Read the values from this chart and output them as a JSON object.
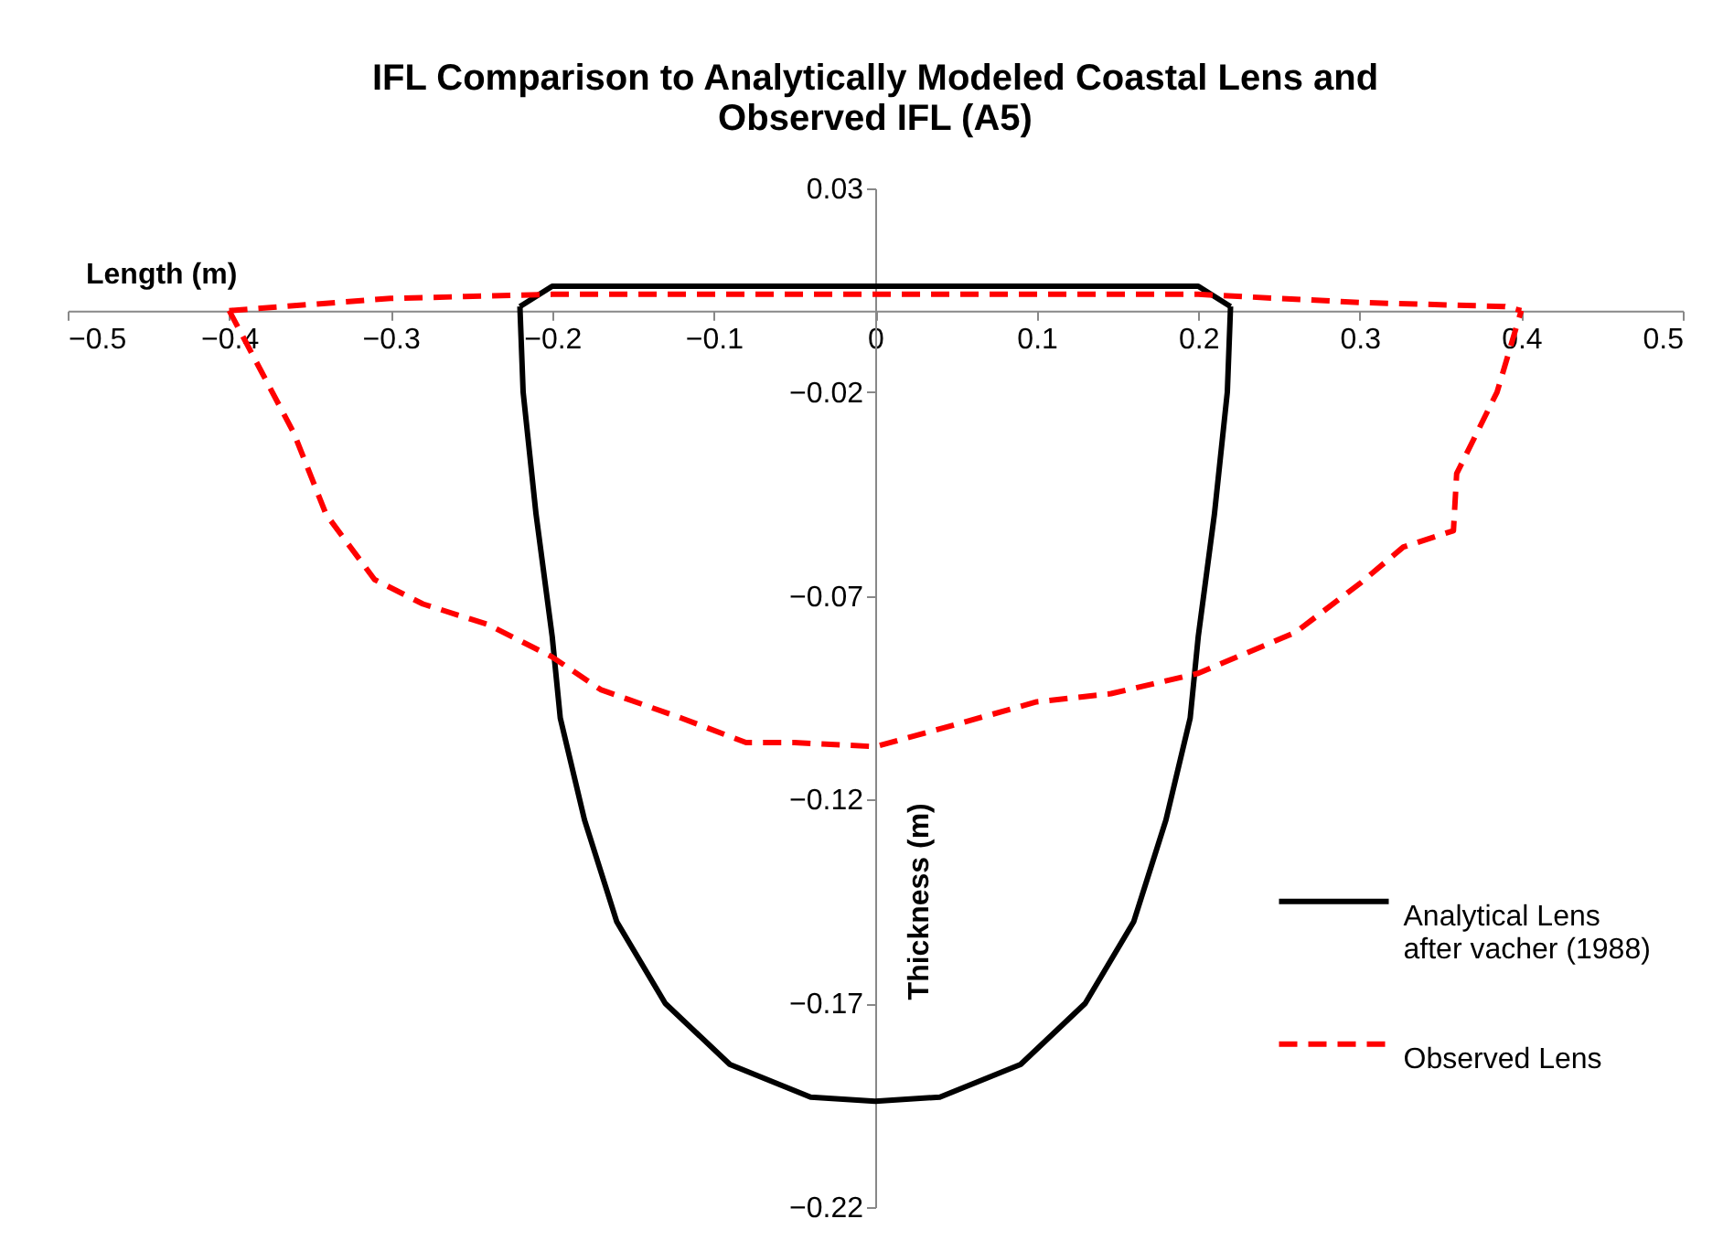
{
  "chart_data": {
    "type": "line",
    "title": "IFL Comparison to Analytically Modeled Coastal Lens and\nObserved IFL (A5)",
    "xlabel": "Length (m)",
    "ylabel": "Thickness (m)",
    "xlim": [
      -0.5,
      0.5
    ],
    "xticks": [
      -0.5,
      -0.4,
      -0.3,
      -0.2,
      -0.1,
      0,
      0.1,
      0.2,
      0.3,
      0.4,
      0.5
    ],
    "ylim": [
      -0.22,
      0.03
    ],
    "yticks": [
      -0.22,
      -0.17,
      -0.12,
      -0.07,
      -0.02,
      0.03
    ],
    "grid": false,
    "legend": "right",
    "marker": "none",
    "series": [
      {
        "name": "Analytical Lens\nafter vacher (1988)",
        "color": "#000000",
        "line_style": "solid",
        "x": [
          -0.22,
          -0.218,
          -0.21,
          -0.2,
          -0.195,
          -0.18,
          -0.16,
          -0.13,
          -0.09,
          -0.04,
          0,
          0.04,
          0.09,
          0.13,
          0.16,
          0.18,
          0.195,
          0.2,
          0.21,
          0.218,
          0.22
        ],
        "values": [
          0.001,
          -0.02,
          -0.05,
          -0.08,
          -0.1,
          -0.125,
          -0.15,
          -0.17,
          -0.185,
          -0.193,
          -0.194,
          -0.193,
          -0.185,
          -0.17,
          -0.15,
          -0.125,
          -0.1,
          -0.08,
          -0.05,
          -0.02,
          0.001
        ]
      },
      {
        "color": "#000000",
        "line_style": "solid",
        "x": [
          -0.22,
          -0.2,
          0,
          0.2,
          0.22
        ],
        "values": [
          0.001,
          0.006,
          0.006,
          0.006,
          0.001
        ]
      },
      {
        "name": "Observed Lens",
        "color": "#ff0000",
        "line_style": "dashed",
        "x": [
          -0.4,
          -0.38,
          -0.36,
          -0.34,
          -0.31,
          -0.28,
          -0.24,
          -0.2,
          -0.17,
          -0.12,
          -0.08,
          -0.05,
          0,
          0.055,
          0.1,
          0.146,
          0.2,
          0.26,
          0.3,
          0.327,
          0.358,
          0.36,
          0.385,
          0.4
        ],
        "values": [
          0.0,
          -0.015,
          -0.03,
          -0.05,
          -0.066,
          -0.072,
          -0.077,
          -0.085,
          -0.093,
          -0.1,
          -0.106,
          -0.106,
          -0.107,
          -0.101,
          -0.096,
          -0.094,
          -0.089,
          -0.079,
          -0.067,
          -0.058,
          -0.054,
          -0.04,
          -0.02,
          0.0
        ]
      },
      {
        "color": "#ff0000",
        "line_style": "dashed",
        "x": [
          -0.4,
          -0.3,
          -0.2,
          0,
          0.2,
          0.3,
          0.39,
          0.4
        ],
        "values": [
          0.0,
          0.003,
          0.004,
          0.004,
          0.004,
          0.002,
          0.001,
          0.0
        ]
      }
    ]
  }
}
